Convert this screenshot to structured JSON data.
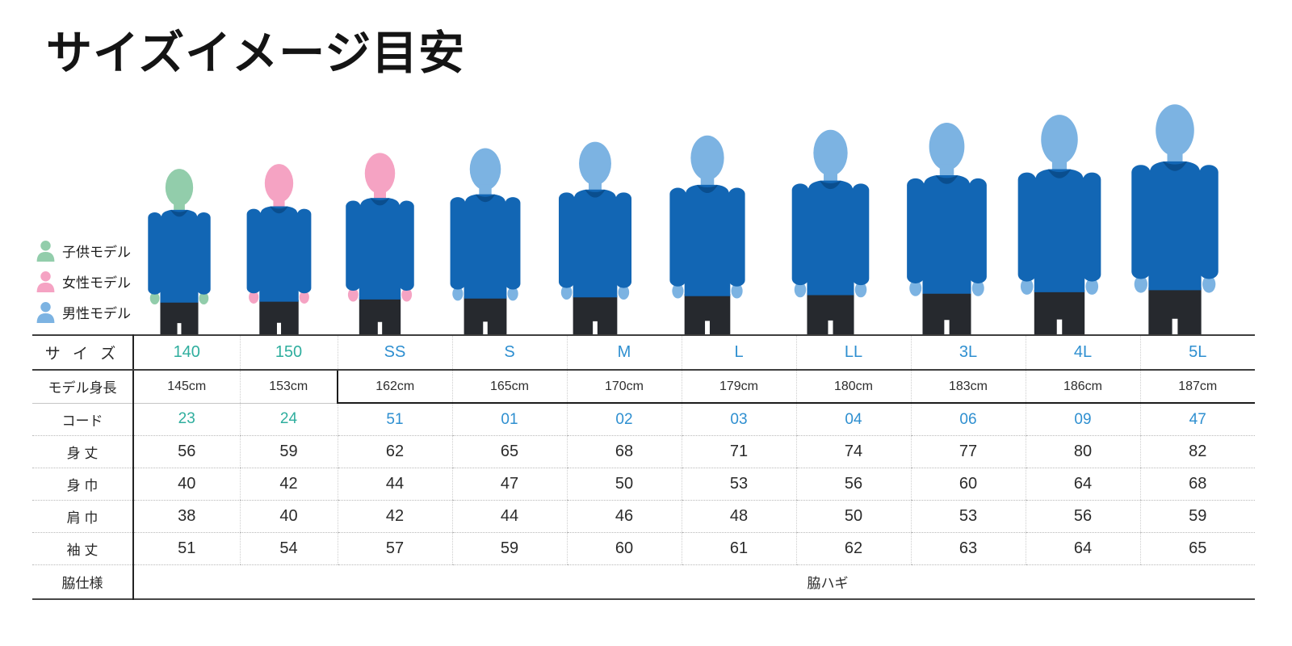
{
  "title": "サイズイメージ目安",
  "legend": [
    {
      "id": "child",
      "label": "子供モデル",
      "color": "#92cdab"
    },
    {
      "id": "female",
      "label": "女性モデル",
      "color": "#f5a3c3"
    },
    {
      "id": "male",
      "label": "男性モデル",
      "color": "#7cb3e2"
    }
  ],
  "figures": [
    {
      "size": "140",
      "model": "child"
    },
    {
      "size": "150",
      "model": "female"
    },
    {
      "size": "SS",
      "model": "female"
    },
    {
      "size": "S",
      "model": "male"
    },
    {
      "size": "M",
      "model": "male"
    },
    {
      "size": "L",
      "model": "male"
    },
    {
      "size": "LL",
      "model": "male"
    },
    {
      "size": "3L",
      "model": "male"
    },
    {
      "size": "4L",
      "model": "male"
    },
    {
      "size": "5L",
      "model": "male"
    }
  ],
  "colors": {
    "shirt": "#1266b4",
    "shirt_shade": "#0a4e8e",
    "pants": "#26292e",
    "child_skin": "#92cdab",
    "female_skin": "#f5a3c3",
    "male_skin": "#7cb3e2",
    "size_teal": "#2fae9e",
    "size_blue": "#2e8fd0"
  },
  "table_labels": {
    "size": "サ イ ズ",
    "model_height": "モデル身長",
    "code": "コード",
    "body_length": "身 丈",
    "body_width": "身 巾",
    "shoulder_width": "肩 巾",
    "sleeve_length": "袖 丈",
    "side_spec": "脇仕様"
  },
  "chart_data": {
    "type": "table",
    "title": "サイズイメージ目安",
    "row_headers": [
      "サイズ",
      "モデル身長",
      "コード",
      "身丈",
      "身巾",
      "肩巾",
      "袖丈",
      "脇仕様"
    ],
    "columns": [
      "140",
      "150",
      "SS",
      "S",
      "M",
      "L",
      "LL",
      "3L",
      "4L",
      "5L"
    ],
    "model_height": [
      "145cm",
      "153cm",
      "162cm",
      "165cm",
      "170cm",
      "179cm",
      "180cm",
      "183cm",
      "186cm",
      "187cm"
    ],
    "code": [
      "23",
      "24",
      "51",
      "01",
      "02",
      "03",
      "04",
      "06",
      "09",
      "47"
    ],
    "body_length": [
      "56",
      "59",
      "62",
      "65",
      "68",
      "71",
      "74",
      "77",
      "80",
      "82"
    ],
    "body_width": [
      "40",
      "42",
      "44",
      "47",
      "50",
      "53",
      "56",
      "60",
      "64",
      "68"
    ],
    "shoulder_width": [
      "38",
      "40",
      "42",
      "44",
      "46",
      "48",
      "50",
      "53",
      "56",
      "59"
    ],
    "sleeve_length": [
      "51",
      "54",
      "57",
      "59",
      "60",
      "61",
      "62",
      "63",
      "64",
      "65"
    ],
    "side_spec": "脇ハギ",
    "size_groups": {
      "child": [
        "140",
        "150"
      ],
      "adult": [
        "SS",
        "S",
        "M",
        "L",
        "LL",
        "3L",
        "4L",
        "5L"
      ]
    }
  }
}
